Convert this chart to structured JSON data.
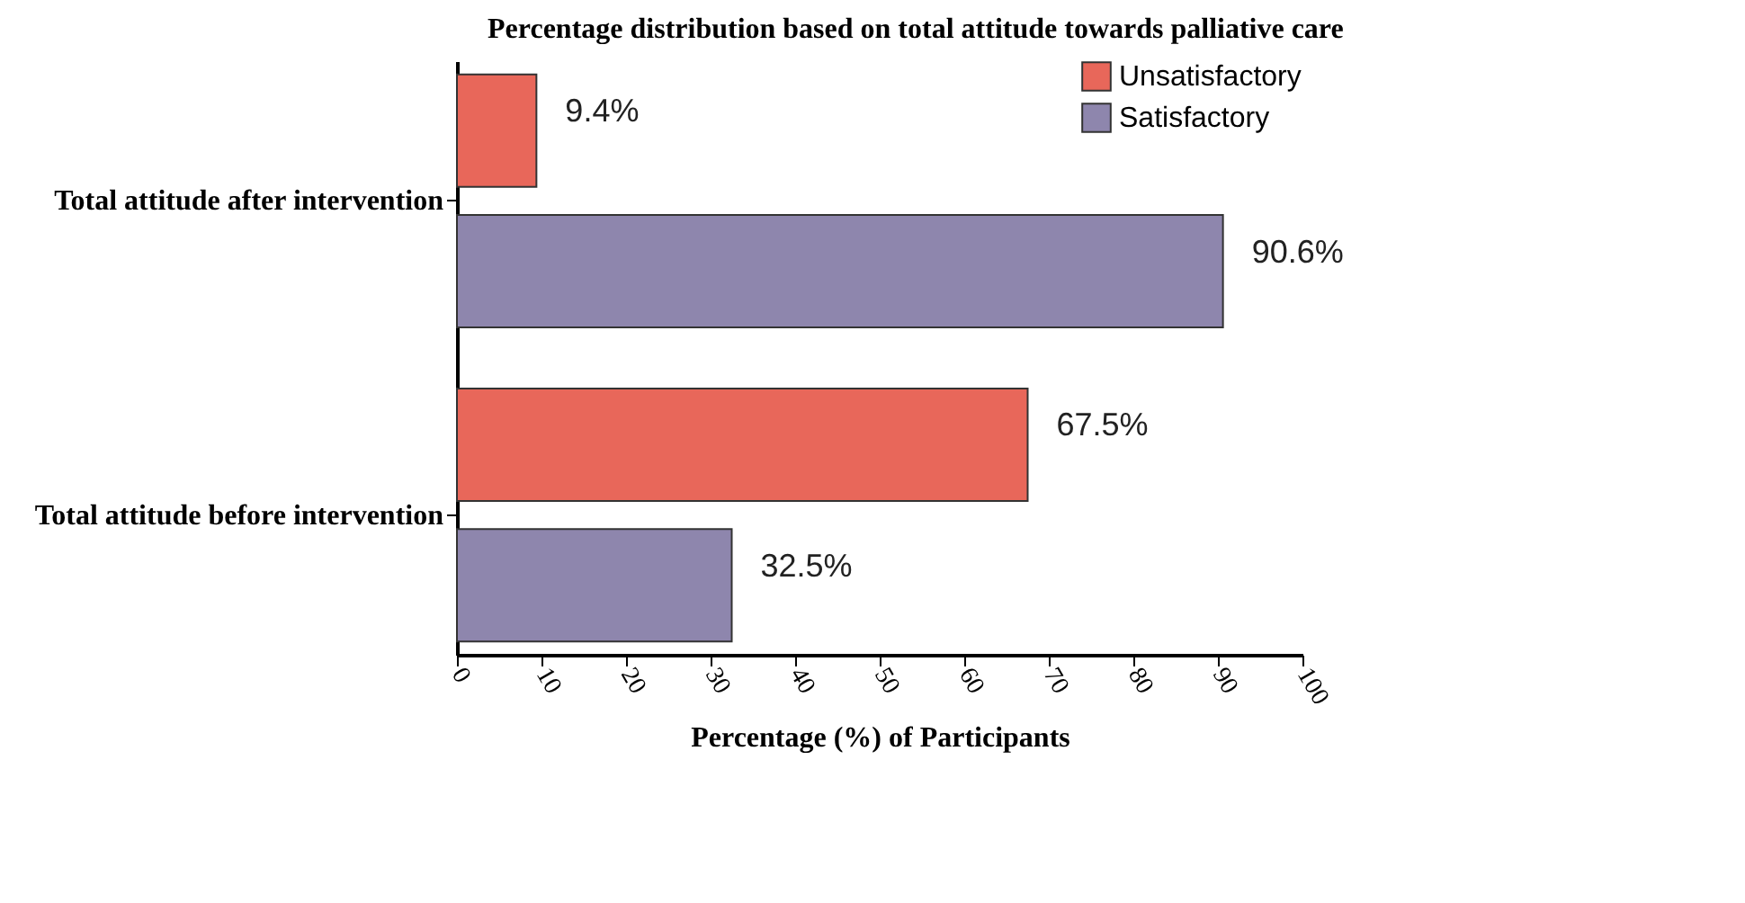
{
  "chart_data": {
    "type": "bar",
    "orientation": "horizontal",
    "title": "Percentage distribution based on total attitude towards palliative care",
    "xlabel": "Percentage (%) of Participants",
    "categories": [
      "Total attitude after intervention",
      "Total attitude before intervention"
    ],
    "series": [
      {
        "name": "Unsatisfactory",
        "color": "#e8675a",
        "values": [
          9.4,
          67.5
        ],
        "value_labels": [
          "9.4%",
          "67.5%"
        ]
      },
      {
        "name": "Satisfactory",
        "color": "#8e86ad",
        "values": [
          90.6,
          32.5
        ],
        "value_labels": [
          "90.6%",
          "32.5%"
        ]
      }
    ],
    "xlim": [
      0,
      100
    ],
    "xticks": [
      0,
      10,
      20,
      30,
      40,
      50,
      60,
      70,
      80,
      90,
      100
    ],
    "grid": false,
    "legend": "top right"
  }
}
